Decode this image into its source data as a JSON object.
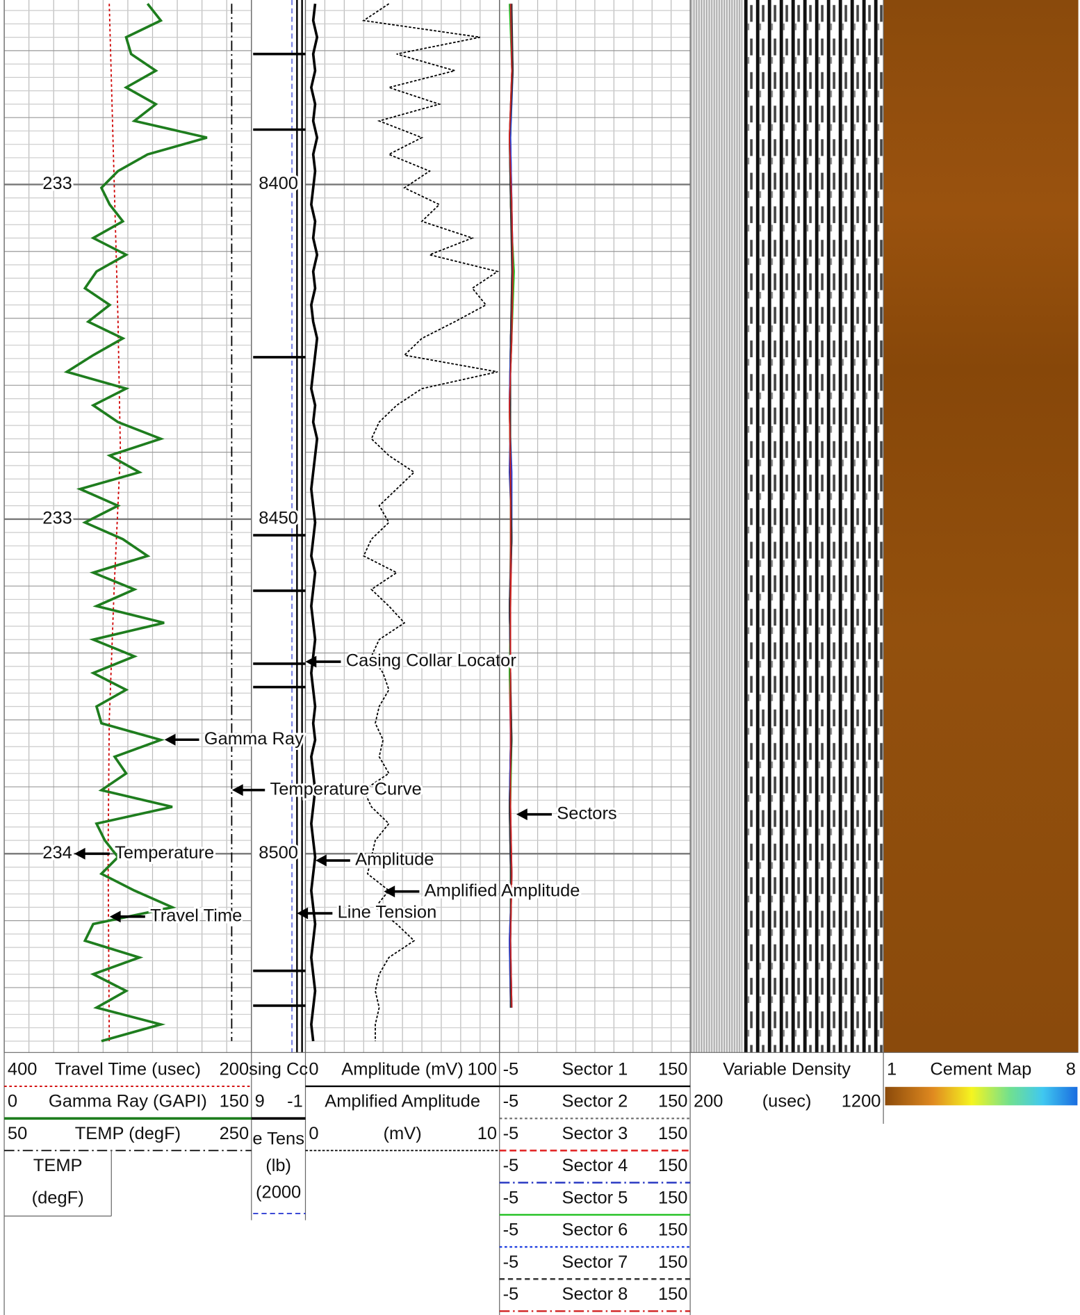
{
  "log": {
    "depth_labels": [
      8400,
      8450,
      8500
    ],
    "time_labels": [
      233,
      233,
      234
    ],
    "depths": [
      8373,
      8375.5,
      8378,
      8380.5,
      8383,
      8385.5,
      8388,
      8390.5,
      8393,
      8395.5,
      8398,
      8400.5,
      8403,
      8405.5,
      8408,
      8410.5,
      8413,
      8415.5,
      8418,
      8420.5,
      8423,
      8425.5,
      8428,
      8430.5,
      8433,
      8435.5,
      8438,
      8440.5,
      8443,
      8445.5,
      8448,
      8450.5,
      8453,
      8455.5,
      8458,
      8460.5,
      8463,
      8465.5,
      8468,
      8470.5,
      8473,
      8475.5,
      8478,
      8480.5,
      8483,
      8485.5,
      8488,
      8490.5,
      8493,
      8495.5,
      8498,
      8500.5,
      8503,
      8505.5,
      8508,
      8510.5,
      8513,
      8515.5,
      8518,
      8520.5,
      8523,
      8525.5,
      8528
    ],
    "curves": {
      "travel_time": {
        "left": 400,
        "name": "Travel Time (usec)",
        "right": 200,
        "color": "#d00000",
        "depths": [
          8373,
          8400,
          8420,
          8440,
          8460,
          8480,
          8500,
          8528
        ],
        "values": [
          315,
          311,
          308,
          306,
          311,
          315,
          316,
          315
        ]
      },
      "gamma_ray": {
        "left": 0,
        "name": "Gamma Ray (GAPI)",
        "right": 150,
        "color": "#1e7d1e",
        "values": [
          87,
          95,
          74,
          77,
          92,
          74,
          92,
          79,
          123,
          87,
          69,
          59,
          64,
          72,
          54,
          74,
          56,
          49,
          64,
          51,
          72,
          54,
          38,
          74,
          54,
          69,
          95,
          64,
          82,
          46,
          69,
          49,
          72,
          87,
          54,
          79,
          56,
          97,
          54,
          79,
          54,
          74,
          56,
          59,
          95,
          67,
          74,
          59,
          102,
          56,
          61,
          69,
          59,
          79,
          102,
          54,
          49,
          82,
          54,
          74,
          56,
          95,
          59
        ]
      },
      "temperature": {
        "left": 50,
        "name": "TEMP (degF)",
        "right": 250,
        "color": "#000000",
        "depths": [
          8373,
          8528
        ],
        "values": [
          234,
          234
        ]
      },
      "amplitude": {
        "left": 0,
        "name": "Amplitude (mV)",
        "right": 100,
        "color": "#000000",
        "values": [
          5,
          4,
          6,
          4,
          5,
          3,
          5,
          4,
          6,
          4,
          5,
          4,
          3,
          5,
          4,
          6,
          4,
          5,
          3,
          4,
          6,
          5,
          4,
          3,
          5,
          4,
          6,
          5,
          4,
          3,
          4,
          5,
          4,
          3,
          5,
          4,
          3,
          4,
          5,
          4,
          3,
          4,
          5,
          4,
          5,
          3,
          4,
          5,
          4,
          3,
          4,
          5,
          4,
          3,
          4,
          5,
          4,
          3,
          4,
          5,
          4,
          3,
          4
        ]
      },
      "amplified_amplitude": {
        "name": "Amplified Amplitude",
        "left": 0,
        "unit": "(mV)",
        "right": 10,
        "color": "#000000",
        "values": [
          4.3,
          3.0,
          9.0,
          4.7,
          7.7,
          4.3,
          6.9,
          3.8,
          6.0,
          4.3,
          6.4,
          5.1,
          6.9,
          6.0,
          8.6,
          6.4,
          9.9,
          8.6,
          9.3,
          7.7,
          6.0,
          5.1,
          9.9,
          6.0,
          4.7,
          3.8,
          3.4,
          4.3,
          5.6,
          4.7,
          3.8,
          4.3,
          3.4,
          3.0,
          4.7,
          3.4,
          4.3,
          5.1,
          3.8,
          3.4,
          4.0,
          4.3,
          3.8,
          3.6,
          4.0,
          3.8,
          4.3,
          3.0,
          3.4,
          4.3,
          3.6,
          3.4,
          3.2,
          4.3,
          3.6,
          4.7,
          5.6,
          4.3,
          3.8,
          3.6,
          3.8,
          3.6,
          3.6
        ]
      }
    },
    "collars": [
      8380.5,
      8391.8,
      8425.8,
      8452.4,
      8460.7,
      8471.6,
      8475.1,
      8517.5,
      8522.7
    ],
    "sector_depths": [
      8373,
      8383,
      8393,
      8403,
      8413,
      8423,
      8433,
      8443,
      8453,
      8463,
      8473,
      8483,
      8493,
      8503,
      8513,
      8523
    ],
    "sectors": [
      {
        "left": -5,
        "name": "Sector 1",
        "right": 150,
        "color": "#000000",
        "values": [
          4,
          5,
          3,
          4,
          6,
          4,
          3,
          4,
          5,
          3,
          4,
          4,
          3,
          5,
          4,
          4
        ]
      },
      {
        "left": -5,
        "name": "Sector 2",
        "right": 150,
        "color": "#777777",
        "values": [
          4,
          6,
          3,
          5,
          5,
          4,
          3,
          4,
          4,
          3,
          4,
          5,
          3,
          4,
          4,
          5
        ]
      },
      {
        "left": -5,
        "name": "Sector 3",
        "right": 150,
        "color": "#e02020",
        "values": [
          5,
          5,
          4,
          4,
          6,
          5,
          3,
          4,
          5,
          4,
          3,
          4,
          4,
          5,
          3,
          4
        ]
      },
      {
        "left": -5,
        "name": "Sector 4",
        "right": 150,
        "color": "#2030c0",
        "values": [
          4,
          6,
          4,
          5,
          6,
          4,
          4,
          3,
          5,
          3,
          4,
          4,
          3,
          4,
          4,
          5
        ]
      },
      {
        "left": -5,
        "name": "Sector 5",
        "right": 150,
        "color": "#20c020",
        "values": [
          3,
          5,
          4,
          4,
          7,
          5,
          3,
          4,
          4,
          4,
          3,
          5,
          4,
          4,
          4,
          4
        ]
      },
      {
        "left": -5,
        "name": "Sector 6",
        "right": 150,
        "color": "#2040e0",
        "values": [
          4,
          5,
          4,
          5,
          6,
          4,
          3,
          5,
          5,
          3,
          4,
          4,
          3,
          5,
          3,
          4
        ]
      },
      {
        "left": -5,
        "name": "Sector 7",
        "right": 150,
        "color": "#333333",
        "values": [
          5,
          6,
          3,
          4,
          5,
          4,
          4,
          4,
          5,
          3,
          4,
          5,
          3,
          4,
          4,
          4
        ]
      },
      {
        "left": -5,
        "name": "Sector 8",
        "right": 150,
        "color": "#d02020",
        "values": [
          4,
          5,
          3,
          5,
          6,
          5,
          3,
          4,
          4,
          4,
          4,
          4,
          4,
          5,
          4,
          5
        ]
      }
    ]
  },
  "headers": {
    "temp_box": [
      "TEMP",
      "(degF)"
    ],
    "depth_col": {
      "ccl": "sing Cc",
      "ccl_left": 9,
      "ccl_right": -1,
      "tension": [
        "e Tens",
        "(lb)",
        "(2000"
      ]
    },
    "vdl": {
      "name": "Variable Density",
      "left": 200,
      "unit": "(usec)",
      "right": 1200
    },
    "cement": {
      "left": 1,
      "name": "Cement Map",
      "right": 8
    }
  },
  "annotations": [
    "Casing Collar Locator",
    "Gamma Ray",
    "Temperature Curve",
    "Sectors",
    "Temperature",
    "Amplitude",
    "Amplified Amplitude",
    "Travel Time",
    "Line Tension"
  ]
}
